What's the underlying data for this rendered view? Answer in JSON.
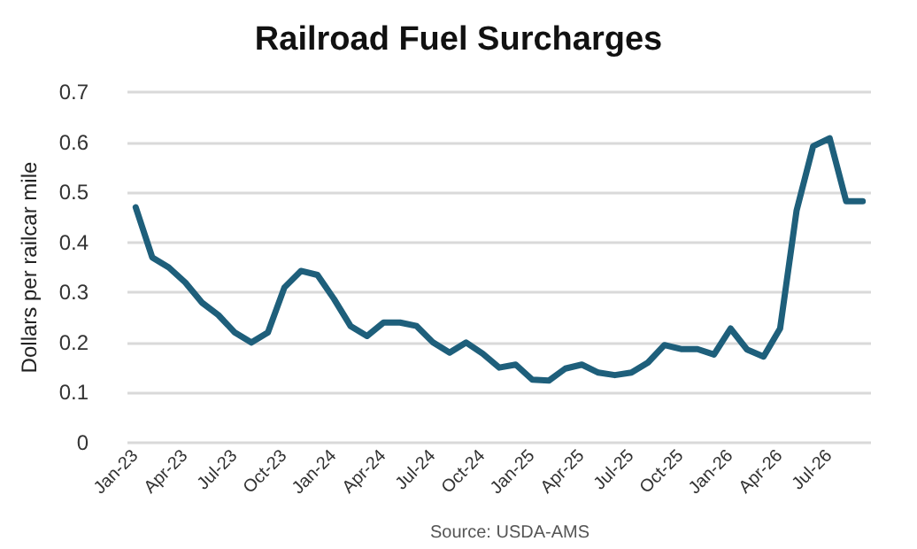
{
  "chart_data": {
    "type": "line",
    "title": "Railroad Fuel Surcharges",
    "ylabel": "Dollars per railcar mile",
    "annotations": [
      "Source: USDA-AMS"
    ],
    "categories": [
      "Jan-23",
      null,
      null,
      "Apr-23",
      null,
      null,
      "Jul-23",
      null,
      null,
      "Oct-23",
      null,
      null,
      "Jan-24",
      null,
      null,
      "Apr-24",
      null,
      null,
      "Jul-24",
      null,
      null,
      "Oct-24",
      null,
      null,
      "Jan-25",
      null,
      null,
      "Apr-25",
      null,
      null,
      "Jul-25",
      null,
      null,
      "Oct-25",
      null,
      null,
      "Jan-26",
      null,
      null,
      "Apr-26",
      null,
      null,
      "Jul-26",
      null,
      null
    ],
    "series": [
      {
        "color": "#1e5f7b",
        "values": [
          0.47,
          0.37,
          0.35,
          0.32,
          0.28,
          0.255,
          0.22,
          0.2,
          0.22,
          0.31,
          0.343,
          0.335,
          0.287,
          0.233,
          0.213,
          0.24,
          0.24,
          0.233,
          0.2,
          0.18,
          0.2,
          0.178,
          0.15,
          0.156,
          0.126,
          0.124,
          0.148,
          0.156,
          0.14,
          0.135,
          0.14,
          0.16,
          0.195,
          0.187,
          0.187,
          0.176,
          0.228,
          0.186,
          0.172,
          0.228,
          0.464,
          0.592,
          0.608,
          0.482,
          0.482
        ]
      }
    ],
    "ylim": [
      0,
      0.7
    ],
    "yticks": [
      0,
      0.1,
      0.2,
      0.3,
      0.4,
      0.5,
      0.6,
      0.7
    ],
    "grid": "y",
    "marker": "none",
    "line_style": "solid"
  }
}
